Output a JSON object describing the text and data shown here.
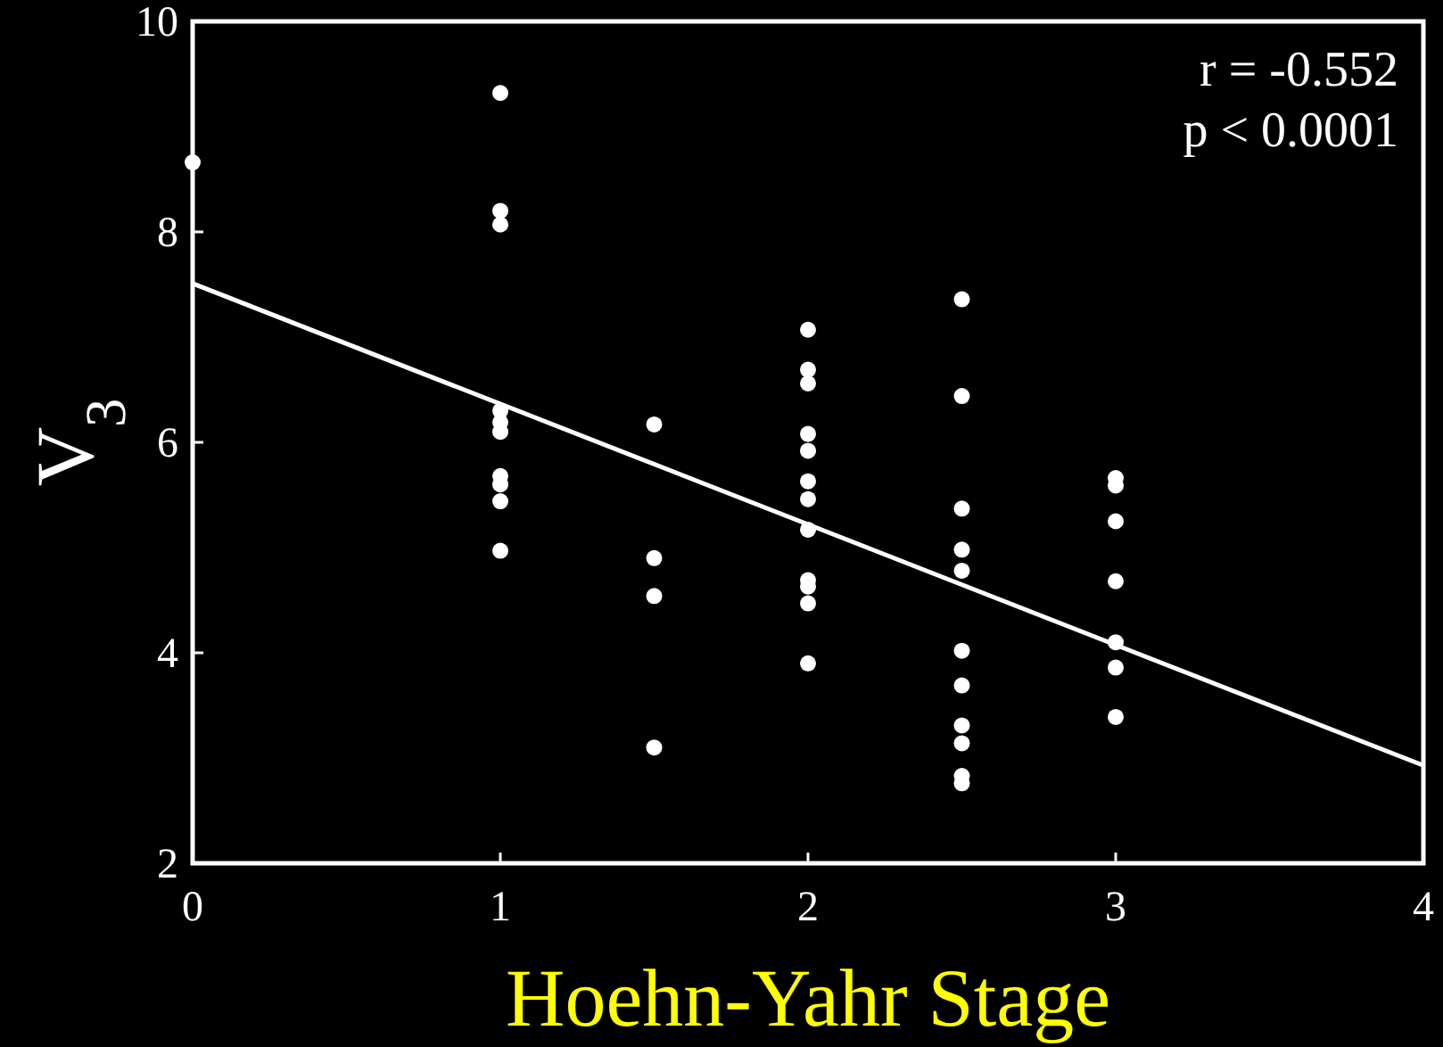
{
  "chart_data": {
    "type": "scatter",
    "xlabel": "Hoehn-Yahr Stage",
    "ylabel": "V$_{3}$",
    "annotations": [
      "r = -0.552",
      "p < 0.0001"
    ],
    "xlim": [
      0,
      4
    ],
    "ylim": [
      2,
      10
    ],
    "xticks": [
      0,
      1,
      2,
      3,
      4
    ],
    "yticks": [
      2,
      4,
      6,
      8,
      10
    ],
    "grid": false,
    "series": [
      {
        "color": "#ffffff",
        "marker": "circle",
        "x": [
          0,
          1,
          1,
          1,
          1,
          1,
          1,
          1,
          1,
          1,
          1,
          1.5,
          1.5,
          1.5,
          1.5,
          2,
          2,
          2,
          2,
          2,
          2,
          2,
          2,
          2,
          2,
          2,
          2,
          2.5,
          2.5,
          2.5,
          2.5,
          2.5,
          2.5,
          2.5,
          2.5,
          2.5,
          2.5,
          2.5,
          3,
          3,
          3,
          3,
          3,
          3,
          3
        ],
        "values": [
          8.66,
          9.32,
          8.2,
          8.07,
          6.3,
          6.19,
          6.1,
          5.68,
          5.6,
          5.44,
          4.97,
          6.17,
          4.9,
          4.54,
          3.1,
          7.07,
          6.69,
          6.56,
          6.08,
          5.92,
          5.63,
          5.46,
          5.17,
          4.69,
          4.63,
          4.47,
          3.9,
          7.36,
          6.44,
          5.37,
          4.98,
          4.78,
          4.02,
          3.69,
          3.31,
          3.14,
          2.83,
          2.76,
          5.66,
          5.59,
          5.25,
          4.68,
          4.1,
          3.86,
          3.39
        ]
      },
      {
        "type": "line",
        "color": "#ffffff",
        "x": [
          0,
          4
        ],
        "values": [
          7.51,
          2.93
        ],
        "line_style": "solid"
      }
    ]
  }
}
